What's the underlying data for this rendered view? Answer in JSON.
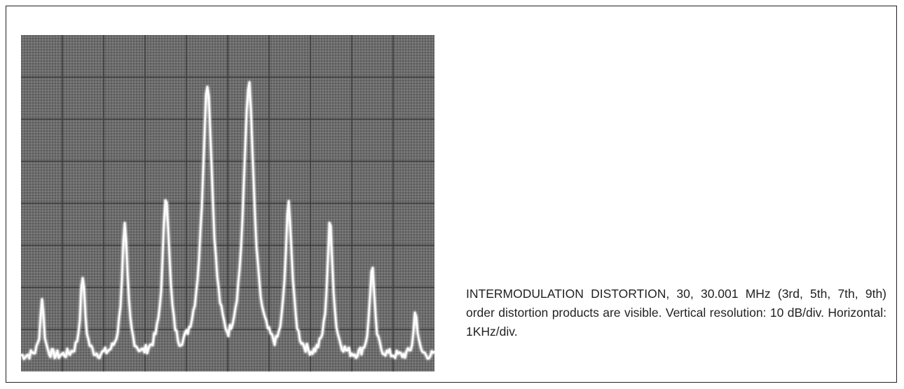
{
  "figure": {
    "caption": "INTERMODULATION DISTORTION, 30, 30.001 MHz (3rd, 5th, 7th, 9th) order distortion products are visible. Vertical resolution: 10 dB/div. Horizontal: 1KHz/div."
  }
}
